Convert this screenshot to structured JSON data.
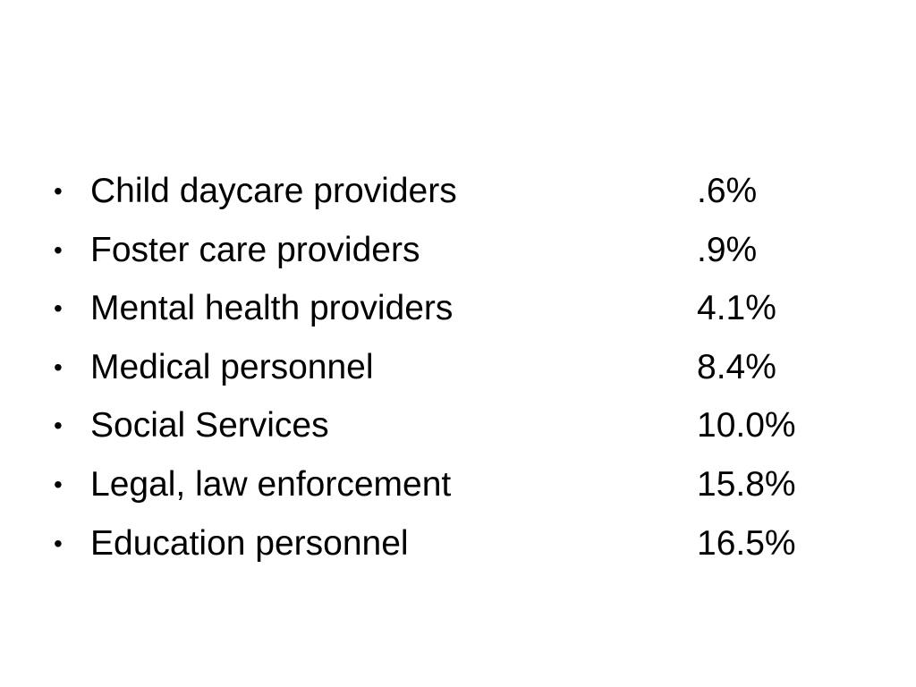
{
  "bullet_glyph": "•",
  "items": [
    {
      "label": "Child daycare providers",
      "value": ".6%"
    },
    {
      "label": "Foster care providers",
      "value": ".9%"
    },
    {
      "label": "Mental health providers",
      "value": "4.1%"
    },
    {
      "label": "Medical personnel",
      "value": "8.4%"
    },
    {
      "label": "Social Services",
      "value": "10.0%"
    },
    {
      "label": "Legal, law enforcement",
      "value": "15.8%"
    },
    {
      "label": "Education personnel",
      "value": "16.5%"
    }
  ]
}
